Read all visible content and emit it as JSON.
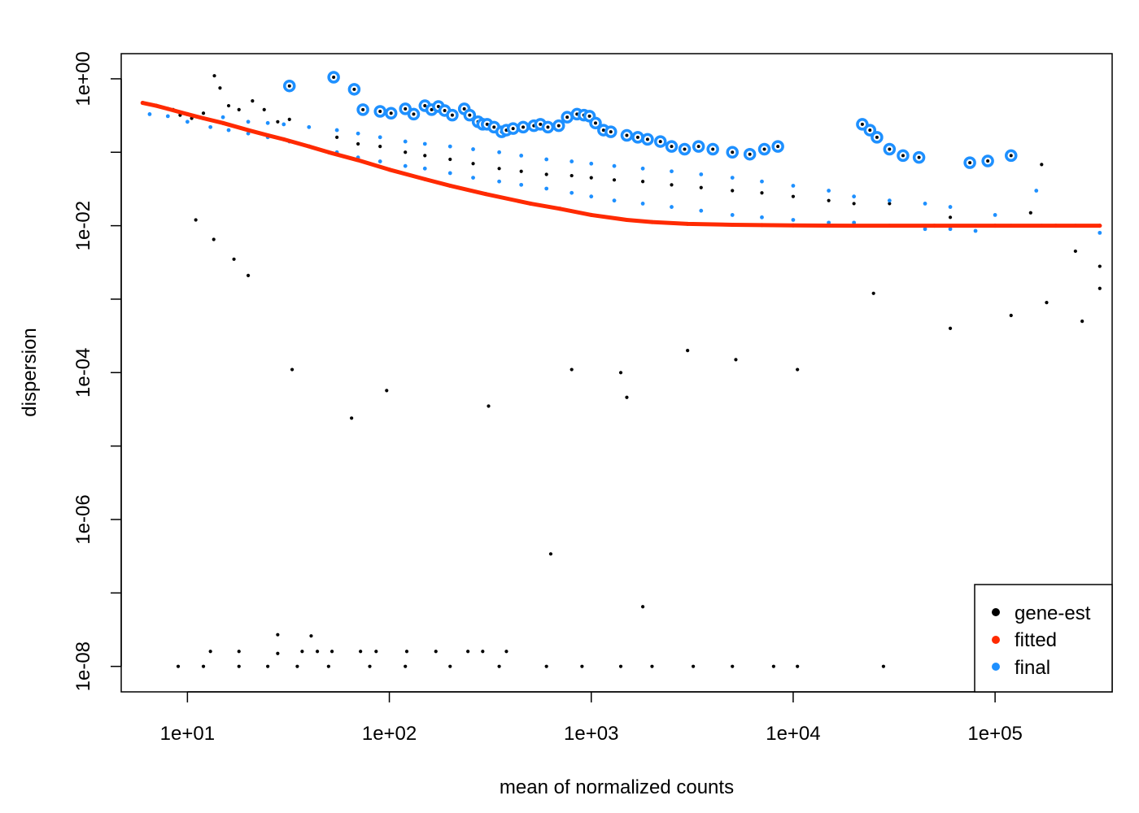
{
  "chart_data": {
    "type": "scatter",
    "title": "",
    "xlabel": "mean of normalized counts",
    "ylabel": "dispersion",
    "x_scale": "log10",
    "y_scale": "log10",
    "xlim": [
      4.7,
      380000
    ],
    "ylim": [
      4.5e-09,
      2.2
    ],
    "x_ticks": [
      {
        "value": 10,
        "label": "1e+01"
      },
      {
        "value": 100,
        "label": "1e+02"
      },
      {
        "value": 1000,
        "label": "1e+03"
      },
      {
        "value": 10000,
        "label": "1e+04"
      },
      {
        "value": 100000,
        "label": "1e+05"
      }
    ],
    "y_ticks": [
      {
        "value": 1e-08,
        "label": "1e-08"
      },
      {
        "value": 1e-07,
        "label": ""
      },
      {
        "value": 1e-06,
        "label": "1e-06"
      },
      {
        "value": 1e-05,
        "label": ""
      },
      {
        "value": 0.0001,
        "label": "1e-04"
      },
      {
        "value": 0.001,
        "label": ""
      },
      {
        "value": 0.01,
        "label": "1e-02"
      },
      {
        "value": 0.1,
        "label": ""
      },
      {
        "value": 1,
        "label": "1e+00"
      }
    ],
    "grid": false,
    "legend_position": "bottom-right",
    "legend": [
      {
        "name": "gene-est",
        "color": "#000000"
      },
      {
        "name": "fitted",
        "color": "#ff2a00"
      },
      {
        "name": "final",
        "color": "#1e90ff"
      }
    ],
    "series": [
      {
        "name": "gene-est",
        "kind": "points",
        "color": "#000000",
        "points": [
          [
            8.5,
            0.38
          ],
          [
            9.2,
            0.32
          ],
          [
            10.5,
            0.29
          ],
          [
            12,
            0.34
          ],
          [
            13.6,
            1.1
          ],
          [
            14.5,
            0.75
          ],
          [
            16,
            0.43
          ],
          [
            18,
            0.38
          ],
          [
            21,
            0.5
          ],
          [
            24,
            0.38
          ],
          [
            28,
            0.26
          ],
          [
            32,
            0.28
          ],
          [
            40,
            0.22
          ],
          [
            55,
            0.16
          ],
          [
            70,
            0.13
          ],
          [
            90,
            0.12
          ],
          [
            120,
            0.1
          ],
          [
            150,
            0.09
          ],
          [
            200,
            0.08
          ],
          [
            260,
            0.07
          ],
          [
            350,
            0.06
          ],
          [
            450,
            0.055
          ],
          [
            600,
            0.05
          ],
          [
            800,
            0.048
          ],
          [
            1000,
            0.045
          ],
          [
            1300,
            0.042
          ],
          [
            1800,
            0.04
          ],
          [
            2500,
            0.036
          ],
          [
            3500,
            0.033
          ],
          [
            5000,
            0.03
          ],
          [
            7000,
            0.028
          ],
          [
            10000,
            0.025
          ],
          [
            15000,
            0.022
          ],
          [
            20000,
            0.02
          ],
          [
            30000,
            0.02
          ],
          [
            60000,
            0.013
          ],
          [
            80000,
            0.01
          ],
          [
            150000,
            0.015
          ],
          [
            170000,
            0.068
          ],
          [
            250000,
            0.0045
          ],
          [
            330000,
            0.0028
          ],
          [
            11,
            0.012
          ],
          [
            13.5,
            0.0065
          ],
          [
            17,
            0.0035
          ],
          [
            20,
            0.0021
          ],
          [
            33,
            0.00011
          ],
          [
            65,
            2.4e-05
          ],
          [
            97,
            5.7e-05
          ],
          [
            310,
            3.5e-05
          ],
          [
            630,
            3.4e-07
          ],
          [
            800,
            0.00011
          ],
          [
            1400,
            0.0001
          ],
          [
            1500,
            4.6e-05
          ],
          [
            1800,
            6.5e-08
          ],
          [
            3000,
            0.0002
          ],
          [
            5200,
            0.00015
          ],
          [
            10500,
            0.00011
          ],
          [
            25000,
            0.0012
          ],
          [
            60000,
            0.0004
          ],
          [
            120000,
            0.0006
          ],
          [
            180000,
            0.0009
          ],
          [
            270000,
            0.0005
          ],
          [
            330000,
            0.0014
          ],
          [
            9,
            1e-08
          ],
          [
            12,
            1e-08
          ],
          [
            18,
            1e-08
          ],
          [
            25,
            1e-08
          ],
          [
            35,
            1e-08
          ],
          [
            50,
            1e-08
          ],
          [
            80,
            1e-08
          ],
          [
            120,
            1e-08
          ],
          [
            200,
            1e-08
          ],
          [
            350,
            1e-08
          ],
          [
            600,
            1e-08
          ],
          [
            900,
            1e-08
          ],
          [
            1400,
            1e-08
          ],
          [
            2000,
            1e-08
          ],
          [
            3200,
            1e-08
          ],
          [
            5000,
            1e-08
          ],
          [
            8000,
            1e-08
          ],
          [
            10500,
            1e-08
          ],
          [
            28000,
            1e-08
          ],
          [
            13,
            1.6e-08
          ],
          [
            18,
            1.6e-08
          ],
          [
            28,
            1.5e-08
          ],
          [
            37,
            1.6e-08
          ],
          [
            44,
            1.6e-08
          ],
          [
            52,
            1.6e-08
          ],
          [
            72,
            1.6e-08
          ],
          [
            86,
            1.6e-08
          ],
          [
            122,
            1.6e-08
          ],
          [
            170,
            1.6e-08
          ],
          [
            245,
            1.6e-08
          ],
          [
            290,
            1.6e-08
          ],
          [
            380,
            1.6e-08
          ],
          [
            28,
            2.7e-08
          ],
          [
            41,
            2.6e-08
          ]
        ]
      },
      {
        "name": "final",
        "kind": "points",
        "color": "#1e90ff",
        "points": [
          [
            6.5,
            0.33
          ],
          [
            8,
            0.31
          ],
          [
            10,
            0.26
          ],
          [
            13,
            0.22
          ],
          [
            16,
            0.2
          ],
          [
            20,
            0.18
          ],
          [
            25,
            0.16
          ],
          [
            32,
            0.14
          ],
          [
            40,
            0.12
          ],
          [
            55,
            0.1
          ],
          [
            70,
            0.085
          ],
          [
            90,
            0.075
          ],
          [
            120,
            0.065
          ],
          [
            150,
            0.06
          ],
          [
            200,
            0.052
          ],
          [
            260,
            0.045
          ],
          [
            350,
            0.04
          ],
          [
            450,
            0.036
          ],
          [
            600,
            0.032
          ],
          [
            800,
            0.028
          ],
          [
            1000,
            0.025
          ],
          [
            1300,
            0.022
          ],
          [
            1800,
            0.02
          ],
          [
            2500,
            0.018
          ],
          [
            3500,
            0.016
          ],
          [
            5000,
            0.014
          ],
          [
            7000,
            0.013
          ],
          [
            10000,
            0.012
          ],
          [
            15000,
            0.011
          ],
          [
            20000,
            0.011
          ],
          [
            30000,
            0.01
          ],
          [
            45000,
            0.009
          ],
          [
            60000,
            0.009
          ],
          [
            80000,
            0.0085
          ],
          [
            120000,
            0.01
          ],
          [
            170000,
            0.01
          ],
          [
            250000,
            0.01
          ],
          [
            330000,
            0.01
          ],
          [
            15,
            0.3
          ],
          [
            20,
            0.26
          ],
          [
            25,
            0.25
          ],
          [
            30,
            0.24
          ],
          [
            40,
            0.22
          ],
          [
            55,
            0.2
          ],
          [
            70,
            0.18
          ],
          [
            90,
            0.16
          ],
          [
            120,
            0.14
          ],
          [
            150,
            0.13
          ],
          [
            200,
            0.12
          ],
          [
            260,
            0.11
          ],
          [
            350,
            0.1
          ],
          [
            450,
            0.09
          ],
          [
            600,
            0.08
          ],
          [
            800,
            0.075
          ],
          [
            1000,
            0.07
          ],
          [
            1300,
            0.065
          ],
          [
            1800,
            0.06
          ],
          [
            2500,
            0.055
          ],
          [
            3500,
            0.05
          ],
          [
            5000,
            0.045
          ],
          [
            7000,
            0.04
          ],
          [
            10000,
            0.035
          ],
          [
            15000,
            0.03
          ],
          [
            20000,
            0.025
          ],
          [
            30000,
            0.022
          ],
          [
            45000,
            0.02
          ],
          [
            60000,
            0.018
          ],
          [
            100000,
            0.014
          ],
          [
            160000,
            0.03
          ],
          [
            330000,
            0.008
          ]
        ]
      },
      {
        "name": "final-outliers",
        "kind": "circled",
        "color": "#1e90ff",
        "center_color": "#000000",
        "points": [
          [
            32,
            0.8
          ],
          [
            53,
            1.05
          ],
          [
            67,
            0.72
          ],
          [
            74,
            0.38
          ],
          [
            90,
            0.36
          ],
          [
            102,
            0.34
          ],
          [
            120,
            0.39
          ],
          [
            132,
            0.33
          ],
          [
            150,
            0.43
          ],
          [
            162,
            0.38
          ],
          [
            175,
            0.42
          ],
          [
            188,
            0.37
          ],
          [
            205,
            0.32
          ],
          [
            235,
            0.39
          ],
          [
            250,
            0.32
          ],
          [
            275,
            0.26
          ],
          [
            290,
            0.24
          ],
          [
            305,
            0.24
          ],
          [
            330,
            0.22
          ],
          [
            360,
            0.19
          ],
          [
            380,
            0.2
          ],
          [
            410,
            0.21
          ],
          [
            460,
            0.22
          ],
          [
            520,
            0.23
          ],
          [
            560,
            0.24
          ],
          [
            610,
            0.22
          ],
          [
            690,
            0.23
          ],
          [
            760,
            0.3
          ],
          [
            850,
            0.33
          ],
          [
            920,
            0.32
          ],
          [
            980,
            0.31
          ],
          [
            1050,
            0.25
          ],
          [
            1150,
            0.2
          ],
          [
            1250,
            0.19
          ],
          [
            1500,
            0.17
          ],
          [
            1700,
            0.16
          ],
          [
            1900,
            0.15
          ],
          [
            2200,
            0.14
          ],
          [
            2500,
            0.12
          ],
          [
            2900,
            0.11
          ],
          [
            3400,
            0.12
          ],
          [
            4000,
            0.11
          ],
          [
            5000,
            0.1
          ],
          [
            6100,
            0.094
          ],
          [
            7200,
            0.11
          ],
          [
            8400,
            0.12
          ],
          [
            22000,
            0.24
          ],
          [
            24000,
            0.2
          ],
          [
            26000,
            0.16
          ],
          [
            30000,
            0.11
          ],
          [
            35000,
            0.09
          ],
          [
            42000,
            0.085
          ],
          [
            75000,
            0.072
          ],
          [
            92000,
            0.076
          ],
          [
            120000,
            0.09
          ]
        ]
      },
      {
        "name": "fitted",
        "kind": "curve",
        "color": "#ff2a00",
        "points": [
          [
            6,
            0.47
          ],
          [
            7,
            0.43
          ],
          [
            8,
            0.39
          ],
          [
            10,
            0.33
          ],
          [
            12,
            0.29
          ],
          [
            15,
            0.25
          ],
          [
            20,
            0.2
          ],
          [
            25,
            0.17
          ],
          [
            30,
            0.15
          ],
          [
            40,
            0.12
          ],
          [
            50,
            0.1
          ],
          [
            70,
            0.078
          ],
          [
            100,
            0.058
          ],
          [
            150,
            0.043
          ],
          [
            200,
            0.035
          ],
          [
            300,
            0.027
          ],
          [
            500,
            0.02
          ],
          [
            700,
            0.017
          ],
          [
            1000,
            0.014
          ],
          [
            1500,
            0.012
          ],
          [
            2000,
            0.0112
          ],
          [
            3000,
            0.0106
          ],
          [
            5000,
            0.0103
          ],
          [
            7000,
            0.0102
          ],
          [
            10000,
            0.0101
          ],
          [
            20000,
            0.01
          ],
          [
            50000,
            0.01
          ],
          [
            100000,
            0.01
          ],
          [
            200000,
            0.01
          ],
          [
            330000,
            0.01
          ]
        ]
      }
    ]
  }
}
